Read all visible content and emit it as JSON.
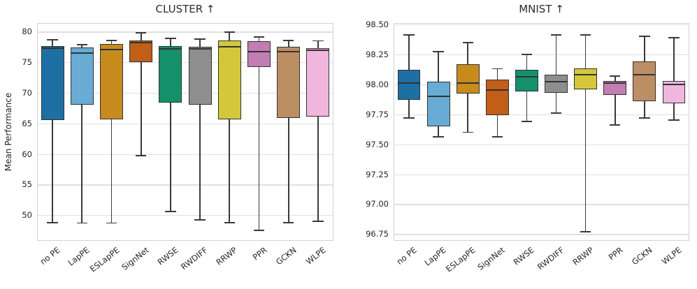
{
  "figure": {
    "background": "#ffffff",
    "text_color": "#262626",
    "grid_color": "#e0e0e0",
    "spine_color": "#d2d2d2",
    "box_edge_color": "#323232"
  },
  "chart_data": [
    {
      "type": "box",
      "title": "CLUSTER ↑",
      "ylabel": "Mean Performance",
      "xlabel": "",
      "legend": "none",
      "grid": "horizontal",
      "ylim": [
        45.9,
        81.3
      ],
      "yticks": [
        50,
        55,
        60,
        65,
        70,
        75,
        80
      ],
      "ytick_labels": [
        "50",
        "55",
        "60",
        "65",
        "70",
        "75",
        "80"
      ],
      "categories": [
        "no PE",
        "LapPE",
        "ESLapPE",
        "SignNet",
        "RWSE",
        "RWDIFF",
        "RRWP",
        "PPR",
        "GCKN",
        "WLPE"
      ],
      "boxes": [
        {
          "label": "no PE",
          "color": "#1d6fa4",
          "whislo": 48.8,
          "q1": 65.5,
          "med": 77.3,
          "q3": 77.6,
          "whishi": 78.7
        },
        {
          "label": "LapPE",
          "color": "#68abd4",
          "whislo": 48.7,
          "q1": 68.0,
          "med": 76.5,
          "q3": 77.4,
          "whishi": 77.9
        },
        {
          "label": "ESLapPE",
          "color": "#c78a1d",
          "whislo": 48.7,
          "q1": 65.6,
          "med": 77.1,
          "q3": 78.0,
          "whishi": 78.6
        },
        {
          "label": "SignNet",
          "color": "#c15e18",
          "whislo": 59.7,
          "q1": 75.0,
          "med": 78.2,
          "q3": 78.6,
          "whishi": 79.8
        },
        {
          "label": "RWSE",
          "color": "#14906a",
          "whislo": 50.6,
          "q1": 68.4,
          "med": 77.2,
          "q3": 77.6,
          "whishi": 78.9
        },
        {
          "label": "RWDIFF",
          "color": "#8e8e8e",
          "whislo": 49.2,
          "q1": 68.0,
          "med": 77.2,
          "q3": 77.5,
          "whishi": 78.8
        },
        {
          "label": "RRWP",
          "color": "#d4c83a",
          "whislo": 48.8,
          "q1": 65.6,
          "med": 77.5,
          "q3": 78.6,
          "whishi": 79.9
        },
        {
          "label": "PPR",
          "color": "#c17db4",
          "whislo": 47.5,
          "q1": 74.2,
          "med": 76.7,
          "q3": 78.4,
          "whishi": 79.1
        },
        {
          "label": "GCKN",
          "color": "#bc8e64",
          "whislo": 48.8,
          "q1": 65.9,
          "med": 76.7,
          "q3": 77.5,
          "whishi": 78.6
        },
        {
          "label": "WLPE",
          "color": "#f0b6de",
          "whislo": 49.0,
          "q1": 66.1,
          "med": 77.0,
          "q3": 77.3,
          "whishi": 78.5
        }
      ]
    },
    {
      "type": "box",
      "title": "MNIST ↑",
      "ylabel": "",
      "xlabel": "",
      "legend": "none",
      "grid": "horizontal",
      "ylim": [
        96.7,
        98.505
      ],
      "yticks": [
        96.75,
        97.0,
        97.25,
        97.5,
        97.75,
        98.0,
        98.25,
        98.5
      ],
      "ytick_labels": [
        "96.75",
        "97.00",
        "97.25",
        "97.50",
        "97.75",
        "98.00",
        "98.25",
        "98.50"
      ],
      "categories": [
        "no PE",
        "LapPE",
        "ESLapPE",
        "SignNet",
        "RWSE",
        "RWDIFF",
        "RRWP",
        "PPR",
        "GCKN",
        "WLPE"
      ],
      "boxes": [
        {
          "label": "no PE",
          "color": "#1d6fa4",
          "whislo": 97.72,
          "q1": 97.87,
          "med": 98.01,
          "q3": 98.12,
          "whishi": 98.41
        },
        {
          "label": "LapPE",
          "color": "#68abd4",
          "whislo": 97.56,
          "q1": 97.65,
          "med": 97.9,
          "q3": 98.02,
          "whishi": 98.27
        },
        {
          "label": "ESLapPE",
          "color": "#c78a1d",
          "whislo": 97.6,
          "q1": 97.92,
          "med": 98.01,
          "q3": 98.17,
          "whishi": 98.35
        },
        {
          "label": "SignNet",
          "color": "#c15e18",
          "whislo": 97.56,
          "q1": 97.74,
          "med": 97.95,
          "q3": 98.04,
          "whishi": 98.13
        },
        {
          "label": "RWSE",
          "color": "#14906a",
          "whislo": 97.69,
          "q1": 97.94,
          "med": 98.06,
          "q3": 98.12,
          "whishi": 98.25
        },
        {
          "label": "RWDIFF",
          "color": "#8e8e8e",
          "whislo": 97.76,
          "q1": 97.93,
          "med": 98.02,
          "q3": 98.08,
          "whishi": 98.41
        },
        {
          "label": "RRWP",
          "color": "#d4c83a",
          "whislo": 96.77,
          "q1": 97.96,
          "med": 98.08,
          "q3": 98.13,
          "whishi": 98.41
        },
        {
          "label": "PPR",
          "color": "#c17db4",
          "whislo": 97.66,
          "q1": 97.91,
          "med": 98.01,
          "q3": 98.03,
          "whishi": 98.07
        },
        {
          "label": "GCKN",
          "color": "#bc8e64",
          "whislo": 97.72,
          "q1": 97.86,
          "med": 98.08,
          "q3": 98.19,
          "whishi": 98.4
        },
        {
          "label": "WLPE",
          "color": "#f0b6de",
          "whislo": 97.7,
          "q1": 97.84,
          "med": 98.0,
          "q3": 98.03,
          "whishi": 98.39
        }
      ]
    }
  ]
}
